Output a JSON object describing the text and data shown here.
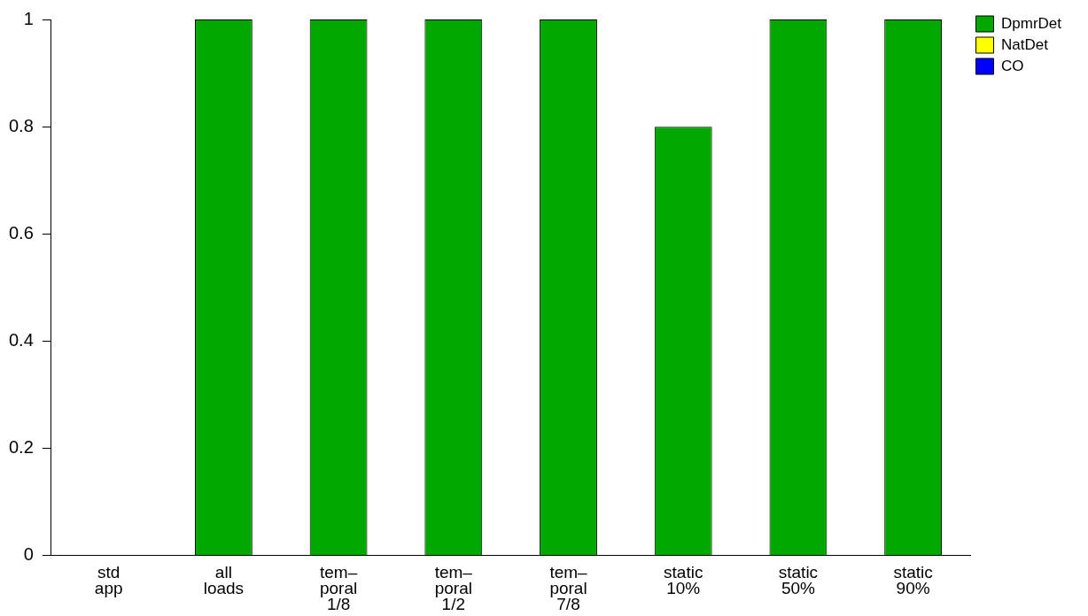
{
  "chart_data": {
    "type": "bar",
    "stacked": true,
    "categories": [
      "std\napp",
      "all\nloads",
      "tem–\nporal\n1/8",
      "tem–\nporal\n1/2",
      "tem–\nporal\n7/8",
      "static\n10%",
      "static\n50%",
      "static\n90%"
    ],
    "series": [
      {
        "name": "DpmrDet",
        "color": "#00a800",
        "values": [
          0,
          1,
          1,
          1,
          1,
          0.8,
          1,
          1
        ]
      },
      {
        "name": "NatDet",
        "color": "#ffff00",
        "values": [
          0,
          0,
          0,
          0,
          0,
          0,
          0,
          0
        ]
      },
      {
        "name": "CO",
        "color": "#0000ff",
        "values": [
          0,
          0,
          0,
          0,
          0,
          0,
          0,
          0
        ]
      }
    ],
    "ylim": [
      0,
      1
    ],
    "yticks": [
      0,
      0.2,
      0.4,
      0.6,
      0.8,
      1
    ],
    "grid": false,
    "legend": "right"
  }
}
